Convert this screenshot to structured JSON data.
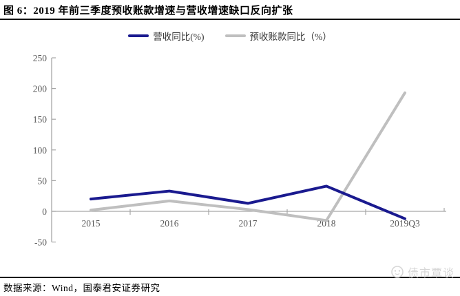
{
  "header": {
    "title": "图 6：2019 年前三季度预收账款增速与营收增速缺口反向扩张"
  },
  "chart_data": {
    "type": "line",
    "categories": [
      "2015",
      "2016",
      "2017",
      "2018",
      "2019Q3"
    ],
    "series": [
      {
        "name": "营收同比(%)",
        "color": "#1a1a8f",
        "values": [
          20,
          33,
          13,
          41,
          -12
        ]
      },
      {
        "name": "预收账款同比（%）",
        "color": "#bfbfbf",
        "values": [
          2,
          17,
          3,
          -15,
          193
        ]
      }
    ],
    "ylim": [
      -50,
      250
    ],
    "yticks": [
      250,
      200,
      150,
      100,
      50,
      0,
      -50
    ],
    "grid": false,
    "legend_position": "top",
    "xlabel": "",
    "ylabel": ""
  },
  "colors": {
    "axis": "#a6a6a6",
    "labels": "#595959",
    "watermark": "#d6d6d6"
  },
  "footer": {
    "source": "数据来源：Wind，国泰君安证券研究"
  },
  "watermark": {
    "text": "债市覃谈"
  }
}
